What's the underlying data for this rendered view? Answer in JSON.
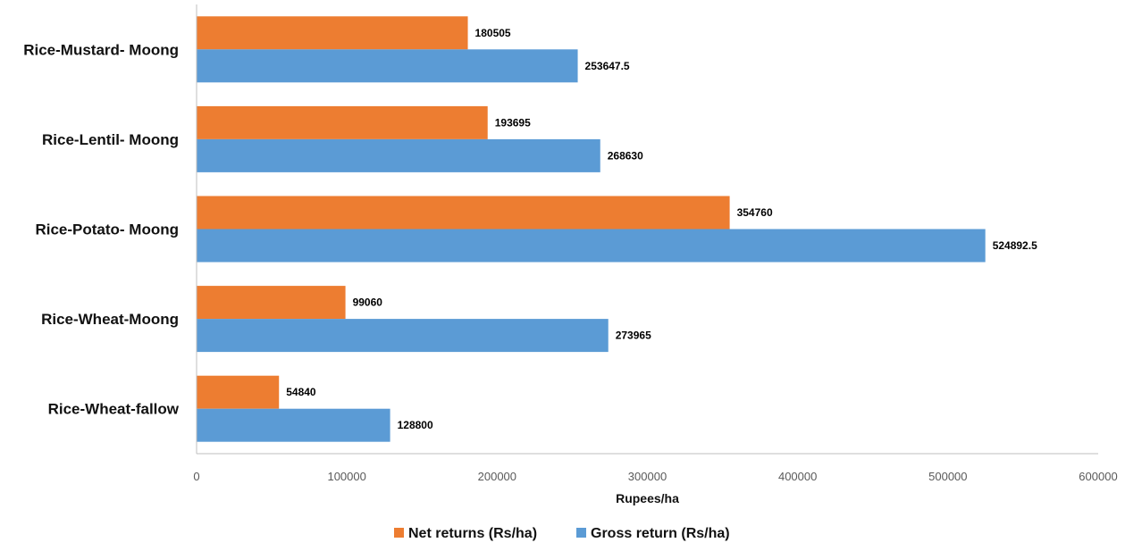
{
  "chart_data": {
    "type": "bar",
    "orientation": "horizontal",
    "categories": [
      "Rice-Mustard- Moong",
      "Rice-Lentil- Moong",
      "Rice-Potato- Moong",
      "Rice-Wheat-Moong",
      "Rice-Wheat-fallow"
    ],
    "series": [
      {
        "name": "Net returns (Rs/ha)",
        "color": "#ed7d31",
        "values": [
          180505,
          193695,
          354760,
          99060,
          54840
        ],
        "labels": [
          "180505",
          "193695",
          "354760",
          "99060",
          "54840"
        ]
      },
      {
        "name": "Gross return (Rs/ha)",
        "color": "#5b9bd5",
        "values": [
          253647.5,
          268630,
          524892.5,
          273965,
          128800
        ],
        "labels": [
          "253647.5",
          "268630",
          "524892.5",
          "273965",
          "128800"
        ]
      }
    ],
    "xlabel": "Rupees/ha",
    "xlim": [
      0,
      600000
    ],
    "xticks": [
      0,
      100000,
      200000,
      300000,
      400000,
      500000,
      600000
    ],
    "xtick_labels": [
      "0",
      "100000",
      "200000",
      "300000",
      "400000",
      "500000",
      "600000"
    ],
    "grid": false,
    "legend_position": "bottom"
  }
}
